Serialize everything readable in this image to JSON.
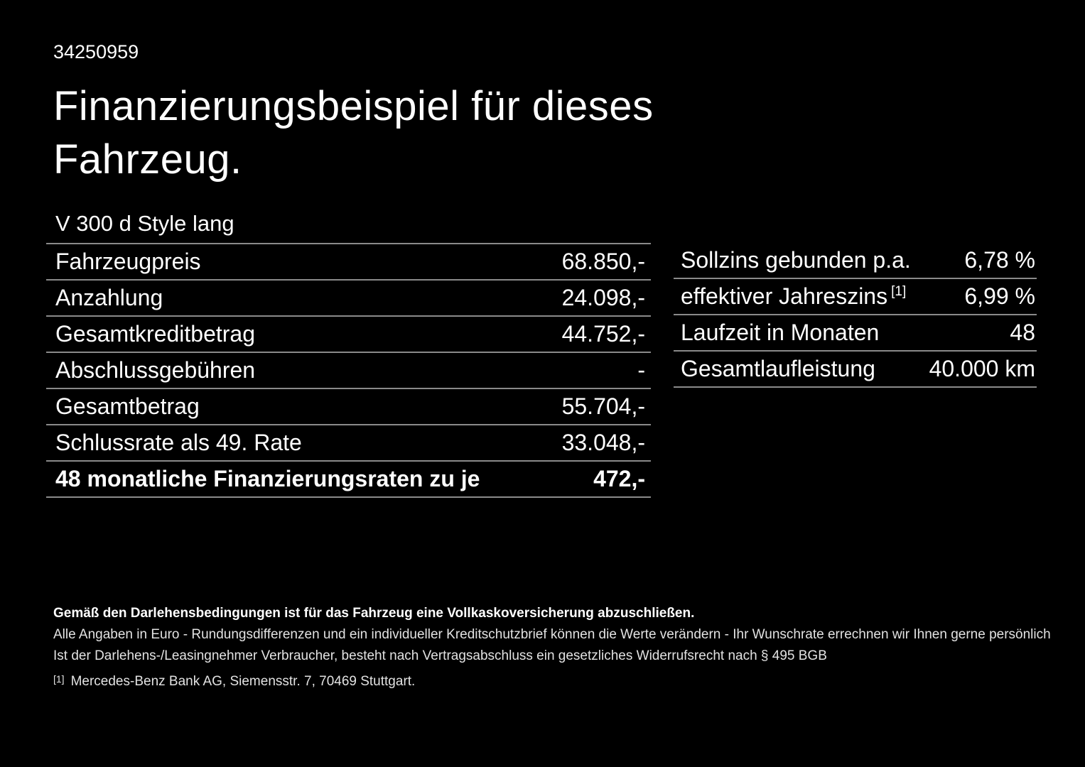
{
  "page": {
    "id_number": "34250959",
    "title_line1": "Finanzierungsbeispiel für dieses",
    "title_line2": "Fahrzeug.",
    "vehicle_model": "V 300 d Style lang"
  },
  "left_table": {
    "rows": [
      {
        "label": "Fahrzeugpreis",
        "value": "68.850,-"
      },
      {
        "label": "Anzahlung",
        "value": "24.098,-"
      },
      {
        "label": "Gesamtkreditbetrag",
        "value": "44.752,-"
      },
      {
        "label": "Abschlussgebühren",
        "value": "-"
      },
      {
        "label": "Gesamtbetrag",
        "value": "55.704,-"
      },
      {
        "label": "Schlussrate als 49. Rate",
        "value": "33.048,-"
      },
      {
        "label": "48 monatliche Finanzierungsraten zu je",
        "value": "472,-"
      }
    ]
  },
  "right_table": {
    "rows": [
      {
        "label": "Sollzins gebunden p.a.",
        "superscript": "",
        "value": "6,78 %"
      },
      {
        "label": "effektiver Jahreszins",
        "superscript": "[1]",
        "value": "6,99 %"
      },
      {
        "label": "Laufzeit in Monaten",
        "superscript": "",
        "value": "48"
      },
      {
        "label": "Gesamtlaufleistung",
        "superscript": "",
        "value": "40.000 km"
      }
    ]
  },
  "footer": {
    "bold_note": "Gemäß den Darlehensbedingungen ist für das Fahrzeug eine Vollkaskoversicherung abzuschließen.",
    "note_line1": "Alle Angaben in Euro - Rundungsdifferenzen und ein individueller Kreditschutzbrief können die Werte verändern - Ihr Wunschrate errechnen wir Ihnen gerne persönlich",
    "note_line2": "Ist der Darlehens-/Leasingnehmer Verbraucher, besteht nach Vertragsabschluss ein gesetzliches Widerrufsrecht nach § 495 BGB",
    "footnote_marker": "[1]",
    "footnote_text": "Mercedes-Benz Bank AG, Siemensstr. 7, 70469 Stuttgart."
  },
  "colors": {
    "background": "#000000",
    "text": "#ffffff",
    "fine_print": "#e2e2e2",
    "divider": "#8a8a8a"
  }
}
